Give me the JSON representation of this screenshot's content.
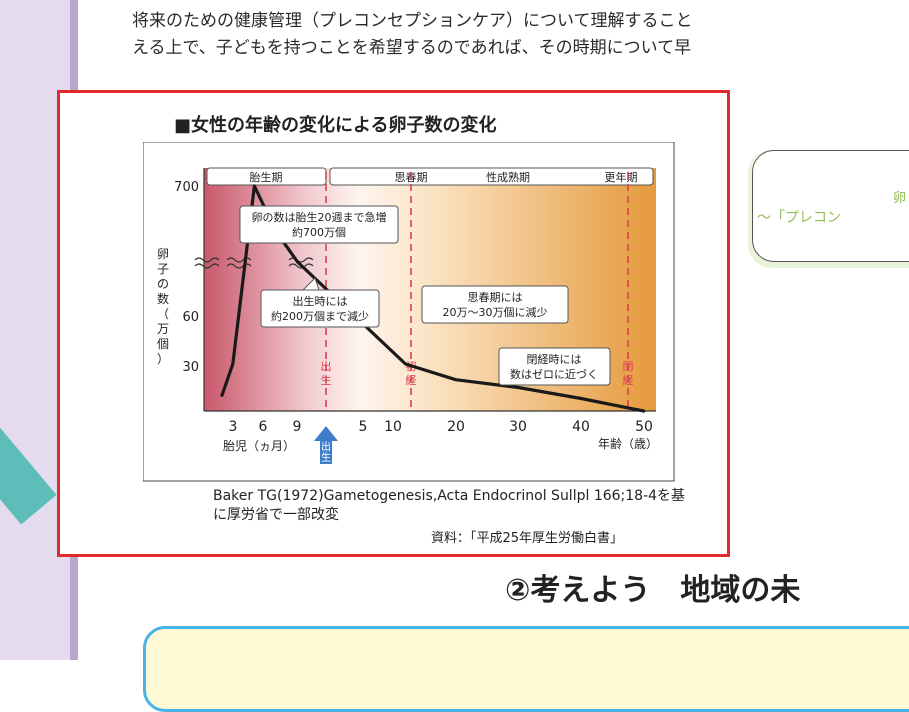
{
  "intro": {
    "line1": "将来のための健康管理（プレコンセプションケア）について理解すること",
    "line2": "える上で、子どもを持つことを希望するのであれば、その時期について早"
  },
  "side_box": {
    "line1": "卵",
    "line2": "～「プレコン"
  },
  "heading2": "②考えよう　地域の未",
  "source": {
    "citation": "Baker TG(1972)Gametogenesis,Acta Endocrinol Sullpl 166;18-4を基に厚労省で一部改変",
    "material": "資料：「平成25年厚生労働白書」"
  },
  "colors": {
    "frame_red": "#e12a2a",
    "title_square": "#2f8fd6",
    "fetal_pink": "#c9586b",
    "adult_orange": "#e59a3c",
    "marker_red": "#d9414f",
    "arrow_blue": "#3d7dc9"
  },
  "chart_data": {
    "type": "line",
    "title": "■女性の年齢の変化による卵子数の変化",
    "ylabel": "卵子の数（万個）",
    "y_ticks": [
      "700",
      "60",
      "30"
    ],
    "y_axis_break": true,
    "x_ticks_fetal": [
      "3",
      "6",
      "9"
    ],
    "x_ticks_age": [
      "5",
      "10",
      "20",
      "30",
      "40",
      "50"
    ],
    "xlabel_fetal": "胎児（ヵ月）",
    "xlabel_age": "年齢（歳）",
    "birth_arrow_label": "出生",
    "phases": [
      "胎生期",
      "思春期",
      "性成熟期",
      "更年期"
    ],
    "markers": [
      {
        "label": "出生",
        "x": "birth"
      },
      {
        "label": "初経",
        "x": 12
      },
      {
        "label": "閉経",
        "x": 50
      }
    ],
    "annotations": [
      "卵の数は胎生20週まで急増 約700万個",
      "出生時には 約200万個まで減少",
      "思春期には 20万～30万個に減少",
      "閉経時には 数はゼロに近づく"
    ],
    "series": [
      {
        "values": [
          {
            "x": "2ヵ月",
            "y": 10
          },
          {
            "x": "3ヵ月",
            "y": 30
          },
          {
            "x": "5ヵ月",
            "y": 700
          },
          {
            "x": "7ヵ月",
            "y": 400
          },
          {
            "x": "9ヵ月(出生)",
            "y": 200
          },
          {
            "x": "12歳",
            "y": 30
          },
          {
            "x": "20歳",
            "y": 20
          },
          {
            "x": "30歳",
            "y": 15
          },
          {
            "x": "40歳",
            "y": 8
          },
          {
            "x": "50歳",
            "y": 0
          }
        ]
      }
    ]
  }
}
